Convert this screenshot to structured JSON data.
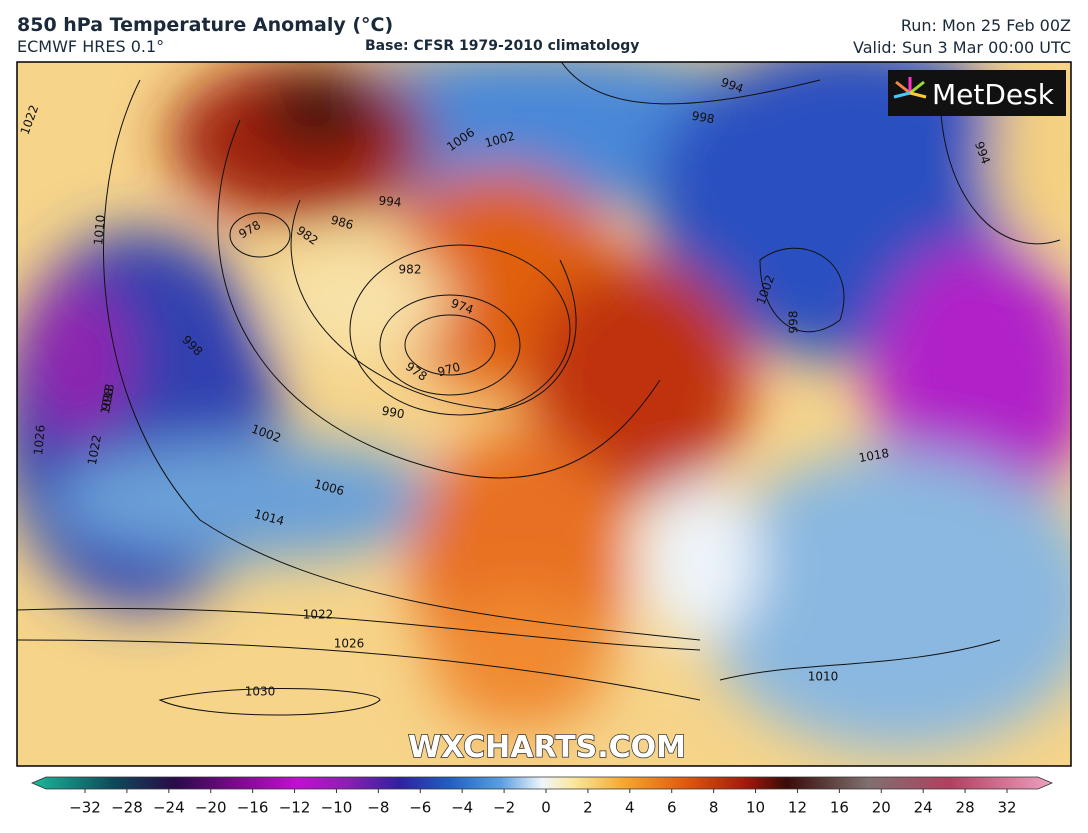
{
  "header": {
    "title": "850 hPa Temperature Anomaly (°C)",
    "model": "ECMWF HRES 0.1°",
    "base": "Base: CFSR 1979-2010 climatology",
    "run": "Run: Mon 25 Feb 00Z",
    "valid": "Valid: Sun 3 Mar 00:00 UTC"
  },
  "map": {
    "logo": "MetDesk",
    "watermark": "WXCHARTS.COM",
    "isobar_labels": [
      "994",
      "998",
      "1006",
      "1002",
      "994",
      "986",
      "978",
      "982",
      "982",
      "974",
      "970",
      "978",
      "990",
      "1002",
      "1006",
      "1014",
      "1022",
      "1026",
      "1030",
      "1010",
      "1018",
      "1002",
      "998",
      "998",
      "994",
      "1022",
      "1010",
      "998",
      "1018",
      "1026",
      "1022"
    ]
  },
  "colorbar": {
    "ticks": [
      "−32",
      "−28",
      "−24",
      "−20",
      "−16",
      "−12",
      "−10",
      "−8",
      "−6",
      "−4",
      "−2",
      "0",
      "2",
      "4",
      "6",
      "8",
      "10",
      "12",
      "16",
      "20",
      "24",
      "28",
      "32"
    ]
  }
}
